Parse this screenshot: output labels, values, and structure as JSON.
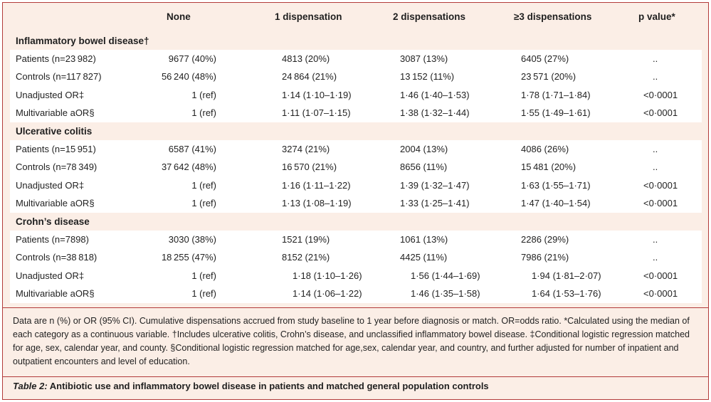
{
  "table": {
    "columns": [
      "None",
      "1 dispensation",
      "2 dispensations",
      "≥3 dispensations",
      "p value*"
    ],
    "sections": [
      {
        "title": "Inflammatory bowel disease†",
        "rows": [
          {
            "label": "Patients (n=23 982)",
            "none": "9677 (40%)",
            "d1": "4813 (20%)",
            "d2": "3087 (13%)",
            "d3": "6405 (27%)",
            "p": ".."
          },
          {
            "label": "Controls (n=117 827)",
            "none": "56 240 (48%)",
            "d1": "24 864 (21%)",
            "d2": "13 152 (11%)",
            "d3": "23 571 (20%)",
            "p": ".."
          },
          {
            "label": "Unadjusted OR‡",
            "none": "1 (ref)",
            "d1": "1·14 (1·10–1·19)",
            "d2": "1·46 (1·40–1·53)",
            "d3": "1·78 (1·71–1·84)",
            "p": "<0·0001"
          },
          {
            "label": "Multivariable aOR§",
            "none": "1 (ref)",
            "d1": "1·11 (1·07–1·15)",
            "d2": "1·38 (1·32–1·44)",
            "d3": "1·55 (1·49–1·61)",
            "p": "<0·0001"
          }
        ]
      },
      {
        "title": "Ulcerative colitis",
        "rows": [
          {
            "label": "Patients (n=15 951)",
            "none": "6587 (41%)",
            "d1": "3274 (21%)",
            "d2": "2004 (13%)",
            "d3": "4086 (26%)",
            "p": ".."
          },
          {
            "label": "Controls (n=78 349)",
            "none": "37 642 (48%)",
            "d1": "16 570 (21%)",
            "d2": "8656 (11%)",
            "d3": "15 481 (20%)",
            "p": ".."
          },
          {
            "label": "Unadjusted OR‡",
            "none": "1 (ref)",
            "d1": "1·16 (1·11–1·22)",
            "d2": "1·39 (1·32–1·47)",
            "d3": "1·63 (1·55–1·71)",
            "p": "<0·0001"
          },
          {
            "label": "Multivariable aOR§",
            "none": "1 (ref)",
            "d1": "1·13 (1·08–1·19)",
            "d2": "1·33 (1·25–1·41)",
            "d3": "1·47 (1·40–1·54)",
            "p": "<0·0001"
          }
        ]
      },
      {
        "title": "Crohn’s disease",
        "rows": [
          {
            "label": "Patients (n=7898)",
            "none": "3030 (38%)",
            "d1": "1521 (19%)",
            "d2": "1061 (13%)",
            "d3": "2286 (29%)",
            "p": ".."
          },
          {
            "label": "Controls (n=38 818)",
            "none": "18 255 (47%)",
            "d1": "8152 (21%)",
            "d2": "4425 (11%)",
            "d3": "7986 (21%)",
            "p": ".."
          },
          {
            "label": "Unadjusted OR‡",
            "none": "1 (ref)",
            "d1": "1·18 (1·10–1·26)",
            "d2": "1·56 (1·44–1·69)",
            "d3": "1·94 (1·81–2·07)",
            "p": "<0·0001"
          },
          {
            "label": "Multivariable aOR§",
            "none": "1 (ref)",
            "d1": "1·14 (1·06–1·22)",
            "d2": "1·46 (1·35–1·58)",
            "d3": "1·64 (1·53–1·76)",
            "p": "<0·0001"
          }
        ]
      }
    ]
  },
  "footnote": "Data are n (%) or OR (95% CI). Cumulative dispensations accrued from study baseline to 1 year before diagnosis or match. OR=odds ratio. *Calculated using the median of each category as a continuous variable. †Includes ulcerative colitis, Crohn’s disease, and unclassified inflammatory bowel disease. ‡Conditional logistic regression matched for age, sex, calendar year, and county. §Conditional logistic regression matched for age,sex, calendar year, and country, and further adjusted for number of inpatient and outpatient encounters and level of education.",
  "caption": {
    "label": "Table 2:",
    "text": " Antibiotic use and inflammatory bowel disease in patients and matched general population controls"
  }
}
